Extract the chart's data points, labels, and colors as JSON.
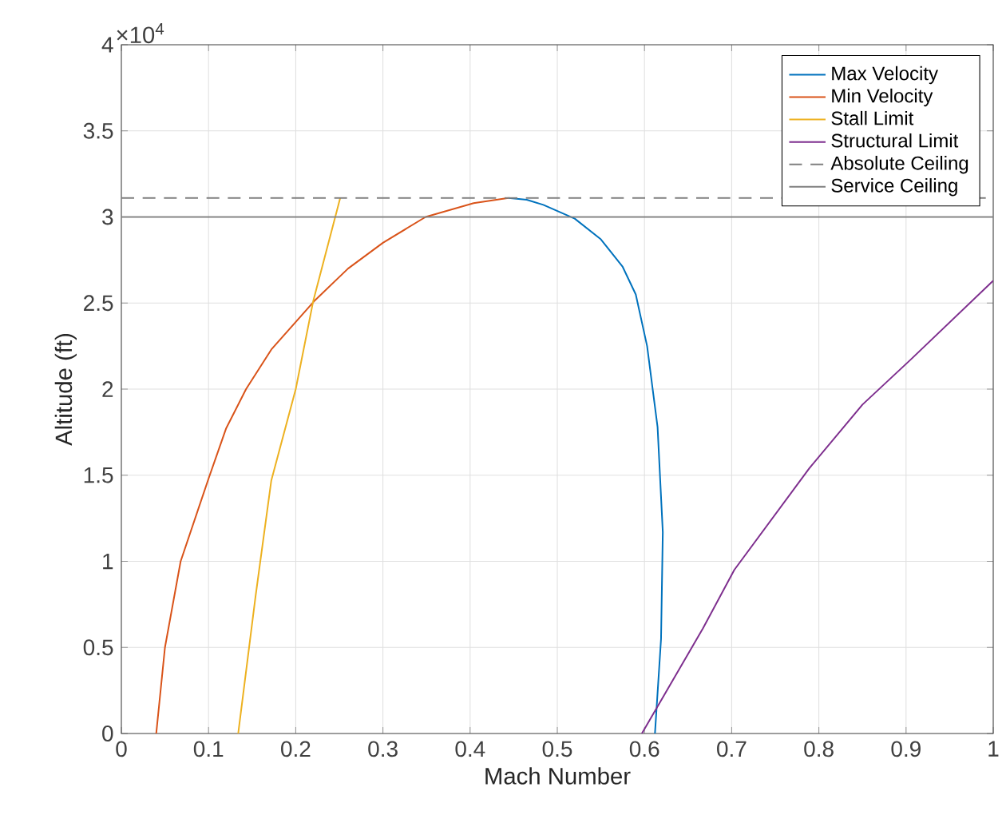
{
  "chart_data": {
    "type": "line",
    "xlabel": "Mach Number",
    "ylabel": "Altitude (ft)",
    "xlim": [
      0,
      1
    ],
    "xticks": [
      0,
      0.1,
      0.2,
      0.3,
      0.4,
      0.5,
      0.6,
      0.7,
      0.8,
      0.9,
      1
    ],
    "ylim": [
      0,
      4
    ],
    "yticks": [
      0,
      0.5,
      1,
      1.5,
      2,
      2.5,
      3,
      3.5,
      4
    ],
    "annotations": [
      "×10$^{4}$"
    ],
    "grid": true,
    "legend": "top right",
    "marker": "none",
    "series": [
      {
        "name": "Max Velocity",
        "color": "#0072bd",
        "x": [
          0.444,
          0.465,
          0.484,
          0.52,
          0.55,
          0.575,
          0.59,
          0.603,
          0.615,
          0.621,
          0.619,
          0.612
        ],
        "values": [
          3.11,
          3.1,
          3.07,
          2.99,
          2.87,
          2.71,
          2.55,
          2.25,
          1.78,
          1.17,
          0.55,
          0
        ]
      },
      {
        "name": "Min Velocity",
        "color": "#d95319",
        "x": [
          0.04,
          0.05,
          0.068,
          0.1,
          0.12,
          0.143,
          0.172,
          0.221,
          0.26,
          0.3,
          0.349,
          0.404,
          0.444
        ],
        "values": [
          0,
          0.5,
          1.0,
          1.48,
          1.77,
          2.0,
          2.23,
          2.51,
          2.7,
          2.85,
          3.0,
          3.08,
          3.11
        ]
      },
      {
        "name": "Stall Limit",
        "color": "#edb120",
        "x": [
          0.134,
          0.154,
          0.172,
          0.2,
          0.22,
          0.251
        ],
        "values": [
          0,
          0.8,
          1.47,
          2.0,
          2.51,
          3.11
        ]
      },
      {
        "name": "Structural Limit",
        "color": "#7e2f8e",
        "x": [
          0.597,
          0.667,
          0.703,
          0.789,
          0.85,
          0.905,
          1.0
        ],
        "values": [
          0,
          0.61,
          0.95,
          1.54,
          1.91,
          2.17,
          2.63
        ]
      }
    ],
    "ref_lines": [
      {
        "axis": "y",
        "value": 3.11,
        "label": "Absolute Ceiling",
        "color": "#7f7f7f",
        "line_style": "dashed"
      },
      {
        "axis": "y",
        "value": 3.0,
        "label": "Service Ceiling",
        "color": "#7f7f7f",
        "line_style": "solid"
      }
    ]
  }
}
